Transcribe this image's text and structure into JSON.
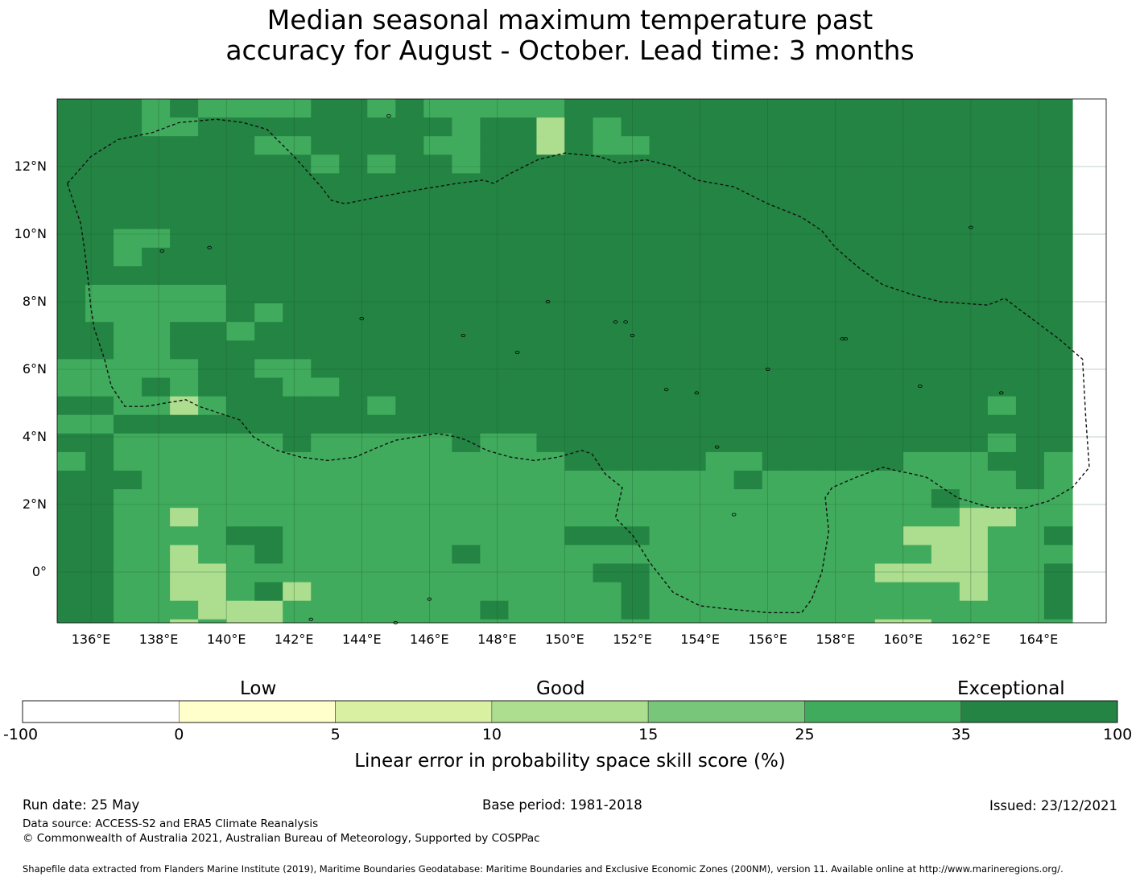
{
  "title_line1": "Median seasonal maximum temperature past",
  "title_line2": "accuracy for August - October. Lead time: 3 months",
  "map": {
    "lat_labels": [
      "12°N",
      "10°N",
      "8°N",
      "6°N",
      "4°N",
      "2°N",
      "0°"
    ],
    "lat_values": [
      12,
      10,
      8,
      6,
      4,
      2,
      0
    ],
    "lon_labels": [
      "136°E",
      "138°E",
      "140°E",
      "142°E",
      "144°E",
      "146°E",
      "148°E",
      "150°E",
      "152°E",
      "154°E",
      "156°E",
      "158°E",
      "160°E",
      "162°E",
      "164°E"
    ],
    "lon_values": [
      136,
      138,
      140,
      142,
      144,
      146,
      148,
      150,
      152,
      154,
      156,
      158,
      160,
      162,
      164
    ],
    "extent": {
      "lon_min": 135,
      "lon_max": 166,
      "lat_min": -1.5,
      "lat_max": 14
    },
    "grid_origin": {
      "lon": 135,
      "lat": -1.5
    },
    "cell_size_deg": {
      "lon": 0.83333,
      "lat": 0.55
    },
    "grid_rows_north_to_south": [
      "444343333443433333444444444444444444",
      "444334444444443442434444444444444444",
      "444444433444433442433444444444444444",
      "444444444343443444444444444444444444",
      "444444444444444444444444444444444444",
      "444444444444444444444444444444444444",
      "444444444444444444444444444444444444",
      "443344444444444444444444444444444444",
      "443444444444444444444444444444444444",
      "444444444444444444444444444444444444",
      "433333444444444444444444444444444444",
      "433333434444444444444444444444444444",
      "443344344444444444444444444444444444",
      "443344444444444444444444444444444444",
      "333334433444444444444444444444444444",
      "333434443344444444444444444444444444",
      "443323444443444444444444444444444344",
      "334444444444444444444444444444444444",
      "443333334333334334444444444444444344",
      "343333333333333333444443344444333443",
      "444333333333333333333333433333333343",
      "443333333333333333333333333333343333",
      "443323333333333333333333333333332233",
      "443333443333333333444333333333222334",
      "443323343333334333333333333333322333",
      "443322333333333333344333333332222334",
      "443322342333333333334333333333332334",
      "443332223333333433334333333333333334",
      "443323223333333333333333333332233333",
      "443323223333333333333333333333333333",
      "444333423333333333333333333333334444",
      "433333333333333333333333333333334444",
      "433343332333333333333333333333334444",
      "443433233333333333333333333333334444",
      "443333332333333333344444333333334444",
      "344433333333333333344444333333333444",
      "344333333333333333344444334333333444",
      "333323333333333333344444333333333444",
      "333342333333333333344444333333333344",
      "333333333333333333344444333333333344"
    ],
    "palette": {
      "1": "#d9f0a3",
      "2": "#addd8e",
      "3": "#41ab5d",
      "4": "#238443",
      "5": "#78c679"
    },
    "boundary_lonlat": [
      [
        135.3,
        11.5
      ],
      [
        136.0,
        12.3
      ],
      [
        136.8,
        12.8
      ],
      [
        137.8,
        13.0
      ],
      [
        138.6,
        13.3
      ],
      [
        139.7,
        13.4
      ],
      [
        140.5,
        13.3
      ],
      [
        141.2,
        13.1
      ],
      [
        142.0,
        12.3
      ],
      [
        142.8,
        11.4
      ],
      [
        143.1,
        11.0
      ],
      [
        143.5,
        10.9
      ],
      [
        144.5,
        11.1
      ],
      [
        145.6,
        11.3
      ],
      [
        146.8,
        11.5
      ],
      [
        147.6,
        11.6
      ],
      [
        147.9,
        11.5
      ],
      [
        148.4,
        11.8
      ],
      [
        149.2,
        12.2
      ],
      [
        150.0,
        12.4
      ],
      [
        151.0,
        12.3
      ],
      [
        151.6,
        12.1
      ],
      [
        152.4,
        12.2
      ],
      [
        153.2,
        12.0
      ],
      [
        153.9,
        11.6
      ],
      [
        155.0,
        11.4
      ],
      [
        156.0,
        10.9
      ],
      [
        157.0,
        10.5
      ],
      [
        157.6,
        10.1
      ],
      [
        158.0,
        9.6
      ],
      [
        158.7,
        9.0
      ],
      [
        159.4,
        8.5
      ],
      [
        160.3,
        8.2
      ],
      [
        161.1,
        8.0
      ],
      [
        162.5,
        7.9
      ],
      [
        163.0,
        8.1
      ],
      [
        163.8,
        7.5
      ],
      [
        164.6,
        6.9
      ],
      [
        165.3,
        6.3
      ],
      [
        165.4,
        4.5
      ],
      [
        165.5,
        3.1
      ],
      [
        165.0,
        2.5
      ],
      [
        164.3,
        2.1
      ],
      [
        163.6,
        1.9
      ],
      [
        162.6,
        1.9
      ],
      [
        161.6,
        2.2
      ],
      [
        160.7,
        2.8
      ],
      [
        160.3,
        2.9
      ],
      [
        159.8,
        3.0
      ],
      [
        159.4,
        3.1
      ],
      [
        158.6,
        2.8
      ],
      [
        157.9,
        2.5
      ],
      [
        157.7,
        2.2
      ],
      [
        157.8,
        1.2
      ],
      [
        157.6,
        0.0
      ],
      [
        157.3,
        -0.8
      ],
      [
        157.0,
        -1.2
      ],
      [
        156.0,
        -1.2
      ],
      [
        154.9,
        -1.1
      ],
      [
        154.0,
        -1.0
      ],
      [
        153.2,
        -0.6
      ],
      [
        152.5,
        0.3
      ],
      [
        152.0,
        1.1
      ],
      [
        151.5,
        1.6
      ],
      [
        151.7,
        2.5
      ],
      [
        151.2,
        2.9
      ],
      [
        150.8,
        3.5
      ],
      [
        150.5,
        3.6
      ],
      [
        149.8,
        3.4
      ],
      [
        149.1,
        3.3
      ],
      [
        148.4,
        3.4
      ],
      [
        147.7,
        3.6
      ],
      [
        147.1,
        3.9
      ],
      [
        146.8,
        4.0
      ],
      [
        146.2,
        4.1
      ],
      [
        145.6,
        4.0
      ],
      [
        145.0,
        3.9
      ],
      [
        144.5,
        3.7
      ],
      [
        143.8,
        3.4
      ],
      [
        143.0,
        3.3
      ],
      [
        142.2,
        3.4
      ],
      [
        141.5,
        3.6
      ],
      [
        140.8,
        4.0
      ],
      [
        140.4,
        4.5
      ],
      [
        139.8,
        4.7
      ],
      [
        139.2,
        4.9
      ],
      [
        138.8,
        5.1
      ],
      [
        138.2,
        5.0
      ],
      [
        137.6,
        4.9
      ],
      [
        137.0,
        4.9
      ],
      [
        136.6,
        5.5
      ],
      [
        136.4,
        6.3
      ],
      [
        136.1,
        7.2
      ],
      [
        136.0,
        7.8
      ],
      [
        135.9,
        8.8
      ],
      [
        135.8,
        9.6
      ],
      [
        135.7,
        10.3
      ],
      [
        135.5,
        10.9
      ],
      [
        135.3,
        11.5
      ]
    ],
    "islands_lonlat": [
      [
        144.8,
        13.5
      ],
      [
        145.7,
        15.0
      ],
      [
        134.6,
        7.4
      ],
      [
        138.1,
        9.5
      ],
      [
        158.2,
        6.9
      ],
      [
        151.8,
        7.4
      ],
      [
        162.9,
        5.3
      ],
      [
        153.9,
        5.3
      ],
      [
        155.0,
        1.7
      ],
      [
        156.0,
        6.0
      ],
      [
        162.0,
        10.2
      ],
      [
        166.6,
        11.6
      ],
      [
        169.5,
        5.8
      ],
      [
        158.3,
        6.9
      ],
      [
        160.5,
        5.5
      ],
      [
        154.5,
        3.7
      ],
      [
        147.0,
        7.0
      ],
      [
        149.5,
        8.0
      ],
      [
        148.6,
        6.5
      ],
      [
        139.5,
        9.6
      ],
      [
        151.5,
        7.4
      ],
      [
        144.0,
        7.5
      ],
      [
        152.0,
        7.0
      ],
      [
        142.5,
        -1.4
      ],
      [
        145.0,
        -1.5
      ],
      [
        146.0,
        -0.8
      ],
      [
        153.0,
        5.4
      ]
    ]
  },
  "colorbar": {
    "colors": [
      "#ffffff",
      "#ffffcc",
      "#d9f0a3",
      "#addd8e",
      "#78c679",
      "#41ab5d",
      "#238443"
    ],
    "ticks": [
      "-100",
      "0",
      "5",
      "10",
      "15",
      "25",
      "35",
      "100"
    ],
    "categories": [
      "Low",
      "Good",
      "Exceptional"
    ],
    "title": "Linear error in probability space skill score (%)"
  },
  "footer": {
    "run_date": "Run date: 25 May",
    "base_period": "Base period: 1981-2018",
    "issued": "Issued: 23/12/2021",
    "data_source": "Data source: ACCESS-S2 and ERA5 Climate Reanalysis",
    "copyright": "© Commonwealth of Australia 2021, Australian Bureau of Meteorology, Supported by COSPPac",
    "shapefile": "Shapefile data extracted from Flanders Marine Institute (2019), Maritime Boundaries Geodatabase: Maritime Boundaries and Exclusive Economic Zones (200NM), version 11. Available online at http://www.marineregions.org/."
  }
}
